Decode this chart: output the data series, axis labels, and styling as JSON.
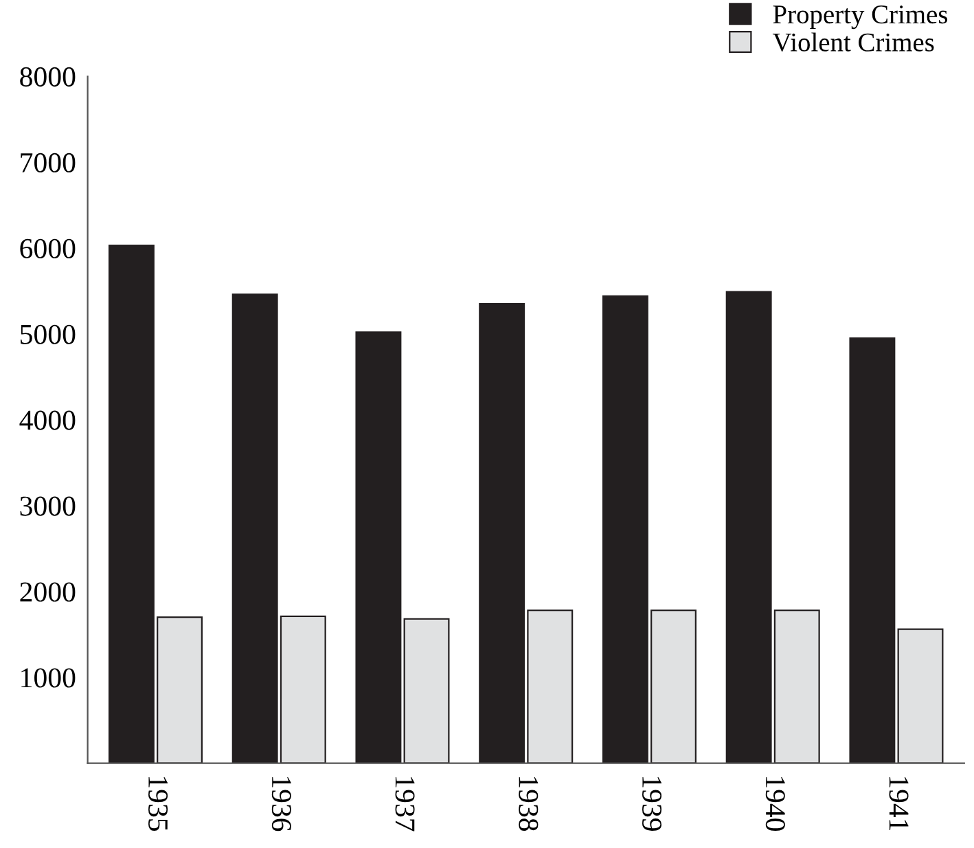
{
  "chart_data": {
    "type": "bar",
    "categories": [
      "1935",
      "1936",
      "1937",
      "1938",
      "1939",
      "1940",
      "1941"
    ],
    "series": [
      {
        "name": "Property Crimes",
        "color": "#231f20",
        "values": [
          6030,
          5460,
          5020,
          5350,
          5440,
          5490,
          4950
        ]
      },
      {
        "name": "Violent Crimes",
        "color": "#e0e1e2",
        "values": [
          1700,
          1710,
          1680,
          1780,
          1780,
          1780,
          1560
        ]
      }
    ],
    "ylim": [
      0,
      8000
    ],
    "yticks": [
      {
        "value": 0,
        "label": null
      },
      1000,
      2000,
      3000,
      4000,
      5000,
      6000,
      7000,
      8000
    ],
    "grid": false,
    "legend": "top right"
  }
}
